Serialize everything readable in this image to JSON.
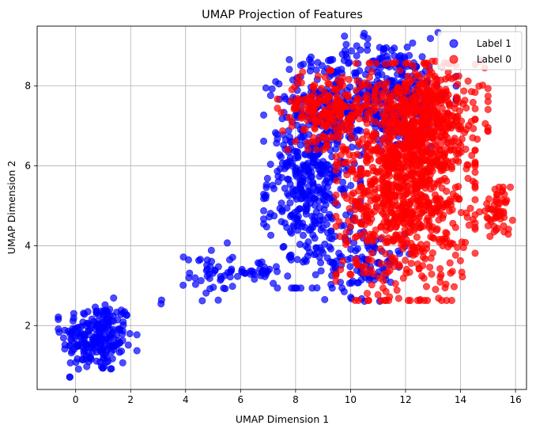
{
  "chart_data": {
    "type": "scatter",
    "title": "UMAP Projection of Features",
    "xlabel": "UMAP Dimension 1",
    "ylabel": "UMAP Dimension 2",
    "xlim": [
      -1.4,
      16.4
    ],
    "ylim": [
      0.4,
      9.5
    ],
    "xticks": [
      0,
      2,
      4,
      6,
      8,
      10,
      12,
      14,
      16
    ],
    "yticks": [
      2,
      4,
      6,
      8
    ],
    "grid": true,
    "legend": "top-right",
    "series": [
      {
        "name": "Label 1",
        "color": "#0000ff",
        "clusters": [
          {
            "cx": 0.8,
            "cy": 1.7,
            "sx": 0.65,
            "sy": 0.45,
            "n": 230
          },
          {
            "cx": 3.1,
            "cy": 2.55,
            "sx": 0.04,
            "sy": 0.04,
            "n": 2
          },
          {
            "cx": 4.9,
            "cy": 3.3,
            "sx": 0.45,
            "sy": 0.35,
            "n": 45
          },
          {
            "cx": 6.7,
            "cy": 3.35,
            "sx": 0.3,
            "sy": 0.12,
            "n": 25
          },
          {
            "cx": 8.6,
            "cy": 5.8,
            "sx": 0.8,
            "sy": 1.3,
            "n": 520
          },
          {
            "cx": 11.2,
            "cy": 7.8,
            "sx": 1.2,
            "sy": 0.7,
            "n": 380
          },
          {
            "cx": 10.6,
            "cy": 3.6,
            "sx": 0.7,
            "sy": 0.45,
            "n": 90
          }
        ]
      },
      {
        "name": "Label 0",
        "color": "#ff0000",
        "clusters": [
          {
            "cx": 9.1,
            "cy": 7.4,
            "sx": 0.8,
            "sy": 0.45,
            "n": 200
          },
          {
            "cx": 12.0,
            "cy": 5.6,
            "sx": 1.15,
            "sy": 1.35,
            "n": 1000
          },
          {
            "cx": 12.8,
            "cy": 7.3,
            "sx": 1.0,
            "sy": 0.6,
            "n": 320
          },
          {
            "cx": 15.3,
            "cy": 4.85,
            "sx": 0.28,
            "sy": 0.28,
            "n": 55
          }
        ]
      }
    ]
  }
}
